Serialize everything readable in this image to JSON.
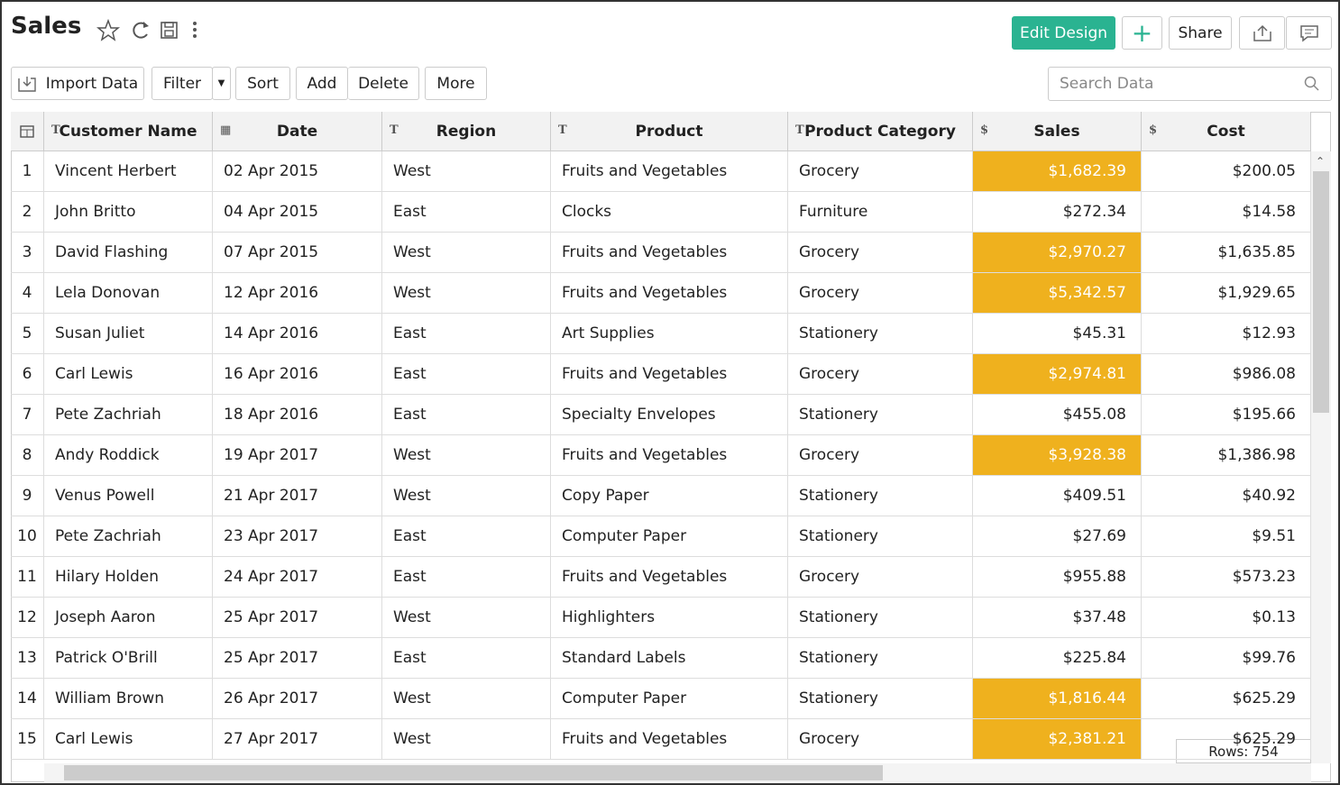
{
  "header": {
    "title": "Sales",
    "buttons": {
      "edit_design": "Edit Design",
      "share": "Share"
    }
  },
  "toolbar": {
    "buttons": [
      "Import Data",
      "Filter",
      "Sort",
      "Add",
      "Delete",
      "More"
    ],
    "search_placeholder": "Search Data"
  },
  "table": {
    "columns": [
      "Customer Name",
      "Date",
      "Region",
      "Product",
      "Product Category",
      "Sales",
      "Cost"
    ],
    "rows": [
      [
        "1",
        "Vincent Herbert",
        "02 Apr 2015",
        "West",
        "Fruits and Vegetables",
        "Grocery",
        "$1,682.39",
        "$200.05"
      ],
      [
        "2",
        "John Britto",
        "04 Apr 2015",
        "East",
        "Clocks",
        "Furniture",
        "$272.34",
        "$14.58"
      ],
      [
        "3",
        "David Flashing",
        "07 Apr 2015",
        "West",
        "Fruits and Vegetables",
        "Grocery",
        "$2,970.27",
        "$1,635.85"
      ],
      [
        "4",
        "Lela Donovan",
        "12 Apr 2016",
        "West",
        "Fruits and Vegetables",
        "Grocery",
        "$5,342.57",
        "$1,929.65"
      ],
      [
        "5",
        "Susan Juliet",
        "14 Apr 2016",
        "East",
        "Art Supplies",
        "Stationery",
        "$45.31",
        "$12.93"
      ],
      [
        "6",
        "Carl Lewis",
        "16 Apr 2016",
        "East",
        "Fruits and Vegetables",
        "Grocery",
        "$2,974.81",
        "$986.08"
      ],
      [
        "7",
        "Pete Zachriah",
        "18 Apr 2016",
        "East",
        "Specialty Envelopes",
        "Stationery",
        "$455.08",
        "$195.66"
      ],
      [
        "8",
        "Andy Roddick",
        "19 Apr 2017",
        "West",
        "Fruits and Vegetables",
        "Grocery",
        "$3,928.38",
        "$1,386.98"
      ],
      [
        "9",
        "Venus Powell",
        "21 Apr 2017",
        "West",
        "Copy Paper",
        "Stationery",
        "$409.51",
        "$40.92"
      ],
      [
        "10",
        "Pete Zachriah",
        "23 Apr 2017",
        "East",
        "Computer Paper",
        "Stationery",
        "$27.69",
        "$9.51"
      ],
      [
        "11",
        "Hilary Holden",
        "24 Apr 2017",
        "East",
        "Fruits and Vegetables",
        "Grocery",
        "$955.88",
        "$573.23"
      ],
      [
        "12",
        "Joseph Aaron",
        "25 Apr 2017",
        "West",
        "Highlighters",
        "Stationery",
        "$37.48",
        "$0.13"
      ],
      [
        "13",
        "Patrick O'Brill",
        "25 Apr 2017",
        "East",
        "Standard Labels",
        "Stationery",
        "$225.84",
        "$99.76"
      ],
      [
        "14",
        "William Brown",
        "26 Apr 2017",
        "West",
        "Computer Paper",
        "Stationery",
        "$1,816.44",
        "$625.29"
      ],
      [
        "15",
        "Carl Lewis",
        "27 Apr 2017",
        "West",
        "Fruits and Vegetables",
        "Grocery",
        "$2,381.21",
        "$625.29"
      ]
    ],
    "highlight": {
      "column": 6,
      "rows": [
        0,
        2,
        3,
        5,
        7,
        13,
        14
      ],
      "color": "#efb11e"
    }
  },
  "footer": {
    "rows_label": "Rows: 754"
  }
}
